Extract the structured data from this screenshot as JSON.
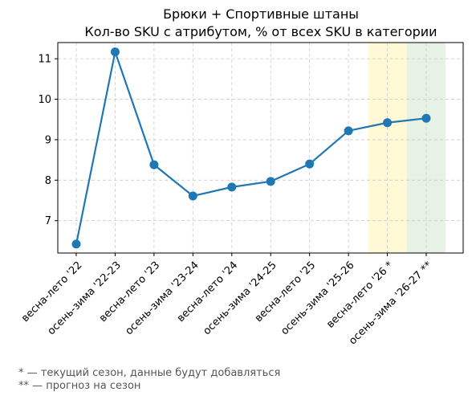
{
  "chart_data": {
    "type": "line",
    "title": "Брюки + Спортивные штаны",
    "subtitle": "Кол-во SKU с атрибутом, % от всех SKU в категории",
    "categories": [
      "весна-лето '22",
      "осень-зима '22-23",
      "весна-лето '23",
      "осень-зима '23-24",
      "весна-лето '24",
      "осень-зима '24-25",
      "весна-лето '25",
      "осень-зима '25-26",
      "весна-лето '26 *",
      "осень-зима '26-27 **"
    ],
    "series": [
      {
        "values": [
          6.42,
          11.17,
          8.38,
          7.61,
          7.83,
          7.97,
          8.4,
          9.22,
          9.42,
          9.53
        ]
      }
    ],
    "yticks": [
      7,
      8,
      9,
      10,
      11
    ],
    "ylim": [
      6.2,
      11.4
    ],
    "grid": true,
    "highlights": [
      {
        "category": "весна-лето '26 *",
        "color": "#fff9d6"
      },
      {
        "category": "осень-зима '26-27 **",
        "color": "#e6f2e3"
      }
    ],
    "line_color": "#1f77b4"
  },
  "footnotes": [
    "* — текущий сезон, данные будут добавляться",
    "** — прогноз на сезон"
  ]
}
